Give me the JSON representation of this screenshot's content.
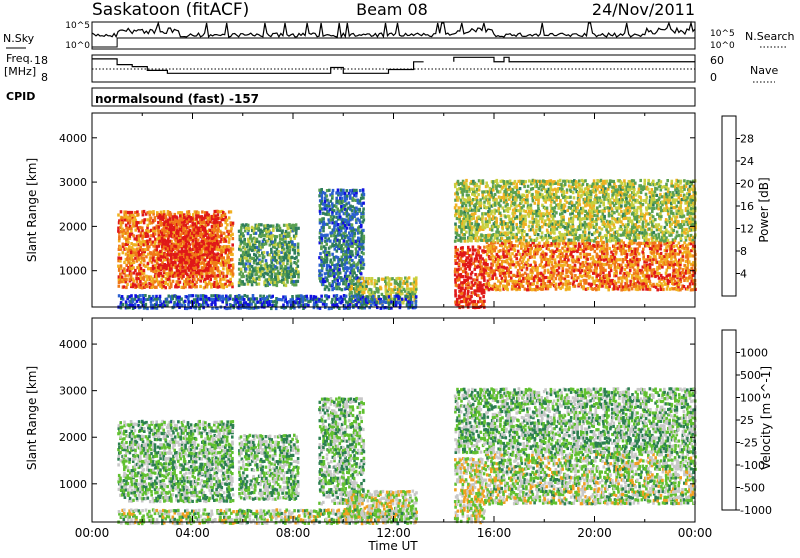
{
  "header": {
    "station": "Saskatoon (fitACF)",
    "beam": "Beam 08",
    "date": "24/Nov/2011",
    "cpid_label": "CPID",
    "cpid_value": "normalsound (fast) -157"
  },
  "time_axis": {
    "label": "Time UT",
    "ticks": [
      "00:00",
      "04:00",
      "08:00",
      "12:00",
      "16:00",
      "20:00",
      "00:00"
    ]
  },
  "panels": {
    "nsky": {
      "label": "N.Sky",
      "right_label": "N.Search",
      "tick_labels": [
        "10^5",
        "10^0"
      ]
    },
    "freq": {
      "label_line1": "Freq.",
      "label_line2": "[MHz]",
      "left_ticks": [
        "18",
        "8"
      ],
      "right_ticks": [
        "60",
        "0"
      ],
      "right_label": "Nave"
    },
    "power": {
      "ylabel": "Slant Range [km]",
      "yticks": [
        "1000",
        "2000",
        "3000",
        "4000"
      ],
      "colorbar_label": "Power [dB]",
      "colorbar_ticks": [
        "4",
        "8",
        "12",
        "16",
        "20",
        "24",
        "28"
      ]
    },
    "velocity": {
      "ylabel": "Slant Range [km]",
      "yticks": [
        "1000",
        "2000",
        "3000",
        "4000"
      ],
      "colorbar_label": "Velocity [m s^-1]",
      "colorbar_ticks": [
        "1000",
        "500",
        "100",
        "25",
        "-25",
        "-100",
        "-500",
        "-1000"
      ]
    }
  },
  "colors": {
    "power_scale": [
      "#1010e0",
      "#2a5fd0",
      "#2e7d5c",
      "#5aa050",
      "#c8d040",
      "#f0b020",
      "#f07818",
      "#e01818"
    ],
    "velocity_scale": [
      "#1a2fd0",
      "#2860c0",
      "#2c8050",
      "#60c030",
      "#c8c8c8",
      "#f0a020",
      "#f07010",
      "#e01010"
    ]
  },
  "chart_data": {
    "type": "heatmap",
    "title": "Saskatoon (fitACF) Beam 08 24/Nov/2011",
    "x_range_hours": [
      0,
      24
    ],
    "y_range_km": [
      180,
      4560
    ],
    "grid": false,
    "series": [
      {
        "name": "Power [dB]",
        "scale_range": [
          0,
          30
        ],
        "regions": [
          {
            "t0": 1.0,
            "t1": 5.6,
            "r0": 650,
            "r1": 2400,
            "value": 24
          },
          {
            "t0": 2.6,
            "t1": 5.0,
            "r0": 900,
            "r1": 2300,
            "value": 28
          },
          {
            "t0": 5.8,
            "t1": 8.2,
            "r0": 700,
            "r1": 2100,
            "value": 12
          },
          {
            "t0": 9.0,
            "t1": 10.8,
            "r0": 600,
            "r1": 2900,
            "value": 8
          },
          {
            "t0": 10.2,
            "t1": 12.9,
            "r0": 300,
            "r1": 900,
            "value": 16
          },
          {
            "t0": 1.0,
            "t1": 12.9,
            "r0": 180,
            "r1": 500,
            "value": 6
          },
          {
            "t0": 14.4,
            "t1": 15.6,
            "r0": 200,
            "r1": 1600,
            "value": 28
          },
          {
            "t0": 15.6,
            "t1": 24.0,
            "r0": 600,
            "r1": 1700,
            "value": 24
          },
          {
            "t0": 14.4,
            "t1": 24.0,
            "r0": 1700,
            "r1": 3100,
            "value": 16
          }
        ]
      },
      {
        "name": "Velocity [m s^-1]",
        "scale_range": [
          -1000,
          1000
        ],
        "regions": [
          {
            "t0": 1.0,
            "t1": 5.6,
            "r0": 650,
            "r1": 2400,
            "value": 100
          },
          {
            "t0": 5.8,
            "t1": 8.2,
            "r0": 700,
            "r1": 2100,
            "value": 100
          },
          {
            "t0": 9.0,
            "t1": 10.8,
            "r0": 600,
            "r1": 2900,
            "value": 100
          },
          {
            "t0": 10.0,
            "t1": 12.9,
            "r0": 300,
            "r1": 900,
            "value": -100
          },
          {
            "t0": 1.0,
            "t1": 12.9,
            "r0": 180,
            "r1": 500,
            "value": -25
          },
          {
            "t0": 14.4,
            "t1": 15.6,
            "r0": 200,
            "r1": 1600,
            "value": -100
          },
          {
            "t0": 15.6,
            "t1": 24.0,
            "r0": 600,
            "r1": 1700,
            "value": 0
          },
          {
            "t0": 14.4,
            "t1": 24.0,
            "r0": 1700,
            "r1": 3100,
            "value": 100
          }
        ]
      }
    ],
    "frequency_mhz_steps": [
      {
        "t0": 0.0,
        "t1": 1.0,
        "value": 18
      },
      {
        "t0": 1.0,
        "t1": 1.6,
        "value": 15
      },
      {
        "t0": 1.6,
        "t1": 2.2,
        "value": 14
      },
      {
        "t0": 2.2,
        "t1": 3.0,
        "value": 12
      },
      {
        "t0": 3.0,
        "t1": 9.5,
        "value": 10.5
      },
      {
        "t0": 9.5,
        "t1": 10.0,
        "value": 13.5
      },
      {
        "t0": 10.0,
        "t1": 11.8,
        "value": 10.5
      },
      {
        "t0": 11.8,
        "t1": 12.8,
        "value": 12.5
      },
      {
        "t0": 12.8,
        "t1": 13.2,
        "value": 16.5
      }
    ]
  }
}
